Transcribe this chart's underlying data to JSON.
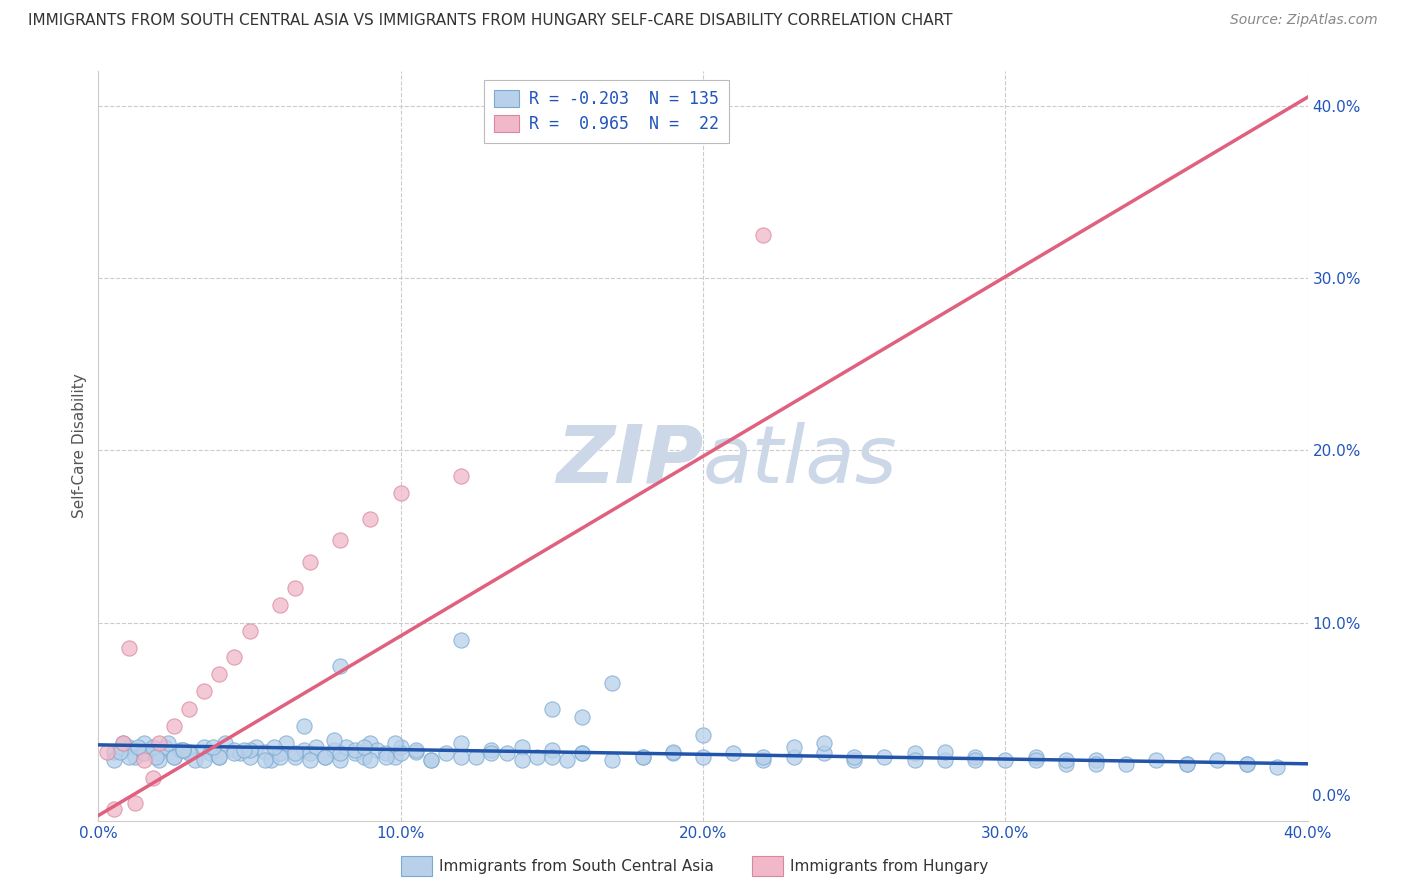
{
  "title": "IMMIGRANTS FROM SOUTH CENTRAL ASIA VS IMMIGRANTS FROM HUNGARY SELF-CARE DISABILITY CORRELATION CHART",
  "source": "Source: ZipAtlas.com",
  "ylabel": "Self-Care Disability",
  "xlim": [
    0.0,
    0.4
  ],
  "ylim": [
    -0.015,
    0.42
  ],
  "xticks": [
    0.0,
    0.1,
    0.2,
    0.3,
    0.4
  ],
  "yticks": [
    0.0,
    0.1,
    0.2,
    0.3,
    0.4
  ],
  "series_blue": {
    "label": "Immigrants from South Central Asia",
    "R": -0.203,
    "N": 135,
    "marker_face": "#b8d0ea",
    "marker_edge": "#7aaad0",
    "line_color": "#2255aa"
  },
  "series_pink": {
    "label": "Immigrants from Hungary",
    "R": 0.965,
    "N": 22,
    "marker_face": "#f0b8c8",
    "marker_edge": "#d888a0",
    "line_color": "#e06080"
  },
  "legend_text_color": "#2255bb",
  "background_color": "#ffffff",
  "grid_color": "#cccccc",
  "title_color": "#333333",
  "source_color": "#888888",
  "watermark_color": "#ccd8e8",
  "blue_scatter_x": [
    0.005,
    0.01,
    0.012,
    0.015,
    0.018,
    0.02,
    0.022,
    0.025,
    0.027,
    0.03,
    0.032,
    0.035,
    0.037,
    0.04,
    0.042,
    0.045,
    0.047,
    0.05,
    0.052,
    0.055,
    0.057,
    0.06,
    0.062,
    0.065,
    0.068,
    0.07,
    0.072,
    0.075,
    0.078,
    0.08,
    0.082,
    0.085,
    0.088,
    0.09,
    0.092,
    0.095,
    0.098,
    0.1,
    0.105,
    0.11,
    0.115,
    0.12,
    0.125,
    0.13,
    0.135,
    0.14,
    0.145,
    0.15,
    0.155,
    0.16,
    0.005,
    0.01,
    0.015,
    0.02,
    0.025,
    0.03,
    0.035,
    0.04,
    0.045,
    0.05,
    0.055,
    0.06,
    0.065,
    0.07,
    0.075,
    0.08,
    0.085,
    0.09,
    0.095,
    0.1,
    0.105,
    0.11,
    0.12,
    0.13,
    0.14,
    0.15,
    0.16,
    0.17,
    0.18,
    0.19,
    0.2,
    0.21,
    0.22,
    0.23,
    0.24,
    0.25,
    0.26,
    0.27,
    0.28,
    0.29,
    0.3,
    0.31,
    0.32,
    0.33,
    0.34,
    0.35,
    0.36,
    0.37,
    0.38,
    0.39,
    0.008,
    0.018,
    0.028,
    0.038,
    0.048,
    0.058,
    0.068,
    0.078,
    0.088,
    0.098,
    0.18,
    0.22,
    0.27,
    0.31,
    0.36,
    0.25,
    0.15,
    0.19,
    0.29,
    0.33,
    0.08,
    0.12,
    0.16,
    0.2,
    0.24,
    0.28,
    0.32,
    0.38,
    0.17,
    0.23,
    0.007,
    0.013,
    0.019,
    0.023,
    0.028
  ],
  "blue_scatter_y": [
    0.025,
    0.028,
    0.022,
    0.03,
    0.026,
    0.024,
    0.028,
    0.022,
    0.026,
    0.025,
    0.02,
    0.028,
    0.024,
    0.022,
    0.03,
    0.026,
    0.024,
    0.022,
    0.028,
    0.025,
    0.02,
    0.024,
    0.03,
    0.022,
    0.026,
    0.024,
    0.028,
    0.022,
    0.026,
    0.02,
    0.028,
    0.024,
    0.022,
    0.03,
    0.026,
    0.024,
    0.022,
    0.028,
    0.025,
    0.02,
    0.024,
    0.03,
    0.022,
    0.026,
    0.024,
    0.028,
    0.022,
    0.026,
    0.02,
    0.024,
    0.02,
    0.022,
    0.024,
    0.02,
    0.022,
    0.024,
    0.02,
    0.022,
    0.024,
    0.026,
    0.02,
    0.022,
    0.024,
    0.02,
    0.022,
    0.024,
    0.026,
    0.02,
    0.022,
    0.024,
    0.026,
    0.02,
    0.022,
    0.024,
    0.02,
    0.022,
    0.024,
    0.02,
    0.022,
    0.024,
    0.022,
    0.024,
    0.02,
    0.022,
    0.024,
    0.02,
    0.022,
    0.024,
    0.02,
    0.022,
    0.02,
    0.022,
    0.018,
    0.02,
    0.018,
    0.02,
    0.018,
    0.02,
    0.018,
    0.016,
    0.03,
    0.028,
    0.026,
    0.028,
    0.026,
    0.028,
    0.04,
    0.032,
    0.028,
    0.03,
    0.022,
    0.022,
    0.02,
    0.02,
    0.018,
    0.022,
    0.05,
    0.025,
    0.02,
    0.018,
    0.075,
    0.09,
    0.045,
    0.035,
    0.03,
    0.025,
    0.02,
    0.018,
    0.065,
    0.028,
    0.025,
    0.028,
    0.022,
    0.03,
    0.026
  ],
  "pink_scatter_x": [
    0.003,
    0.008,
    0.01,
    0.015,
    0.02,
    0.025,
    0.03,
    0.035,
    0.04,
    0.045,
    0.05,
    0.06,
    0.065,
    0.07,
    0.08,
    0.09,
    0.1,
    0.12,
    0.22,
    0.005,
    0.012,
    0.018
  ],
  "pink_scatter_y": [
    0.025,
    0.03,
    0.085,
    0.02,
    0.03,
    0.04,
    0.05,
    0.06,
    0.07,
    0.08,
    0.095,
    0.11,
    0.12,
    0.135,
    0.148,
    0.16,
    0.175,
    0.185,
    0.325,
    -0.008,
    -0.005,
    0.01
  ],
  "blue_trend_x": [
    0.0,
    0.4
  ],
  "blue_trend_y": [
    0.029,
    0.018
  ],
  "pink_trend_x": [
    0.0,
    0.4
  ],
  "pink_trend_y": [
    -0.012,
    0.405
  ]
}
